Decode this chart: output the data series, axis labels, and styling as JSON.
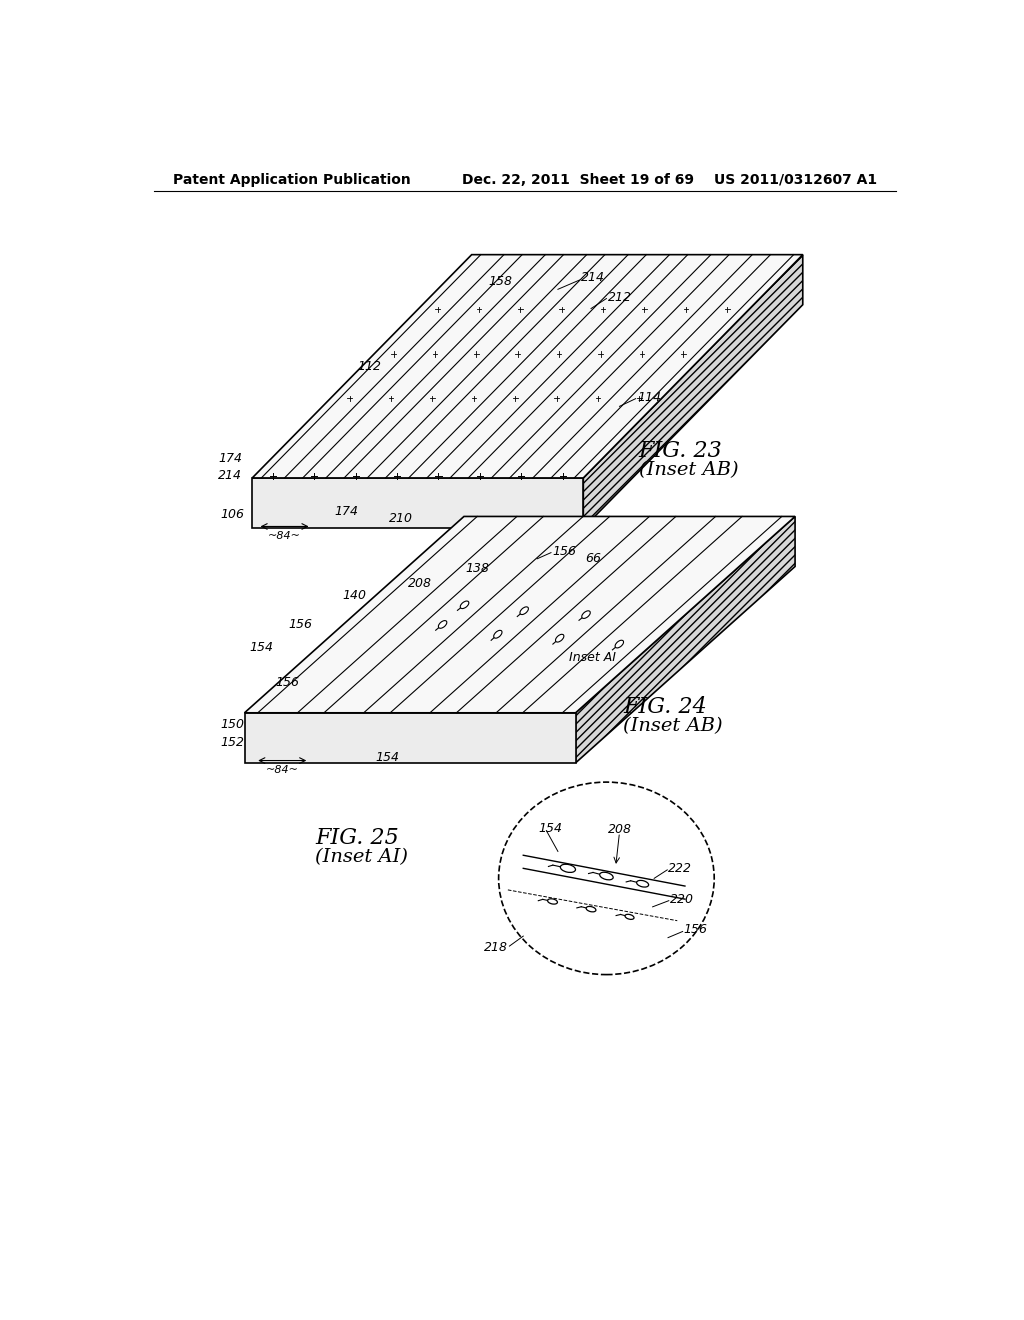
{
  "bg_color": "#ffffff",
  "text_color": "#000000",
  "header_left": "Patent Application Publication",
  "header_center": "Dec. 22, 2011  Sheet 19 of 69",
  "header_right": "US 2011/0312607 A1",
  "fig23_label": "FIG. 23",
  "fig23_sub": "(Inset AB)",
  "fig24_label": "FIG. 24",
  "fig24_sub": "(Inset AB)",
  "fig25_label": "FIG. 25",
  "fig25_sub": "(Inset AI)",
  "inset_ai_label": "Inset AI",
  "line_color": "#000000",
  "hatch_color": "#888888",
  "label_fontsize": 9,
  "header_fontsize": 10,
  "fig_label_fontsize": 16
}
